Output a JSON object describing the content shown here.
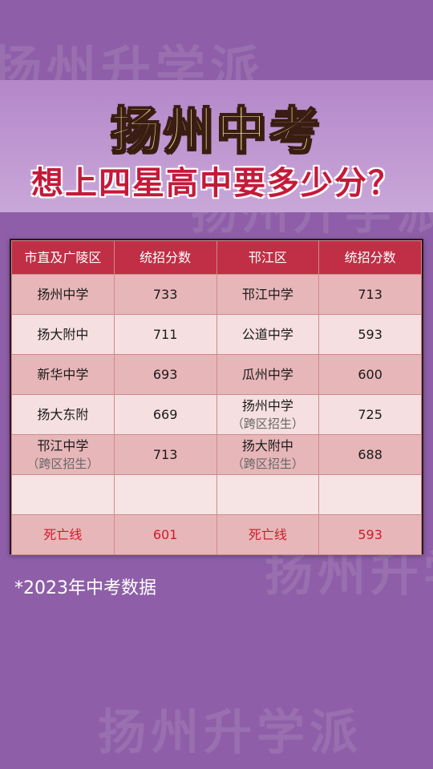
{
  "watermarks": [
    "扬州升学派",
    "扬州升学派",
    "扬州升学派",
    "扬州升学派"
  ],
  "header": {
    "title": "扬州中考",
    "subtitle": "想上四星高中要多少分？"
  },
  "table": {
    "headers": [
      "市直及广陵区",
      "统招分数",
      "邗江区",
      "统招分数"
    ],
    "rows": [
      {
        "school_a": "扬州中学",
        "note_a": "",
        "score_a": "733",
        "school_b": "邗江中学",
        "note_b": "",
        "score_b": "713"
      },
      {
        "school_a": "扬大附中",
        "note_a": "",
        "score_a": "711",
        "school_b": "公道中学",
        "note_b": "",
        "score_b": "593"
      },
      {
        "school_a": "新华中学",
        "note_a": "",
        "score_a": "693",
        "school_b": "瓜州中学",
        "note_b": "",
        "score_b": "600"
      },
      {
        "school_a": "扬大东附",
        "note_a": "",
        "score_a": "669",
        "school_b": "扬州中学",
        "note_b": "（跨区招生）",
        "score_b": "725"
      },
      {
        "school_a": "邗江中学",
        "note_a": "（跨区招生）",
        "score_a": "713",
        "school_b": "扬大附中",
        "note_b": "（跨区招生）",
        "score_b": "688"
      }
    ],
    "cutoff": {
      "label_a": "死亡线",
      "score_a": "601",
      "label_b": "死亡线",
      "score_b": "593"
    }
  },
  "footer": {
    "note": "*2023年中考数据"
  },
  "colors": {
    "background": "#8e5fa8",
    "header_red": "#c02f45",
    "title_yellow": "#fff2a0",
    "subtitle_red": "#c41a3a",
    "cutoff_red": "#d11a2a"
  }
}
